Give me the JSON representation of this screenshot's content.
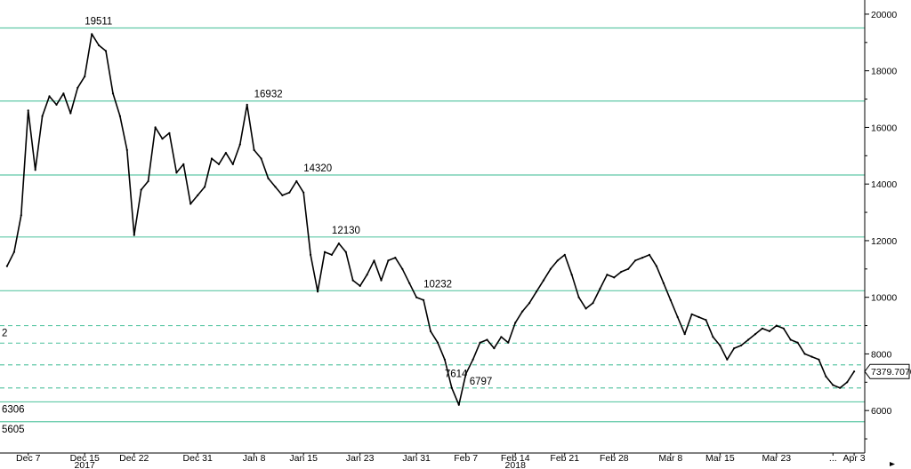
{
  "chart_data": {
    "type": "line",
    "title": "",
    "xlabel": "",
    "ylabel": "",
    "ylim": [
      4500,
      20500
    ],
    "grid": false,
    "y_ticks": [
      6000,
      8000,
      10000,
      12000,
      14000,
      16000,
      18000,
      20000
    ],
    "x_ticks": [
      {
        "label": "Dec 7",
        "date": "2017-12-07"
      },
      {
        "label": "Dec 15",
        "date": "2017-12-15"
      },
      {
        "label": "Dec 22",
        "date": "2017-12-22"
      },
      {
        "label": "Dec 31",
        "date": "2017-12-31"
      },
      {
        "label": "Jan 8",
        "date": "2018-01-08"
      },
      {
        "label": "Jan 15",
        "date": "2018-01-15"
      },
      {
        "label": "Jan 23",
        "date": "2018-01-23"
      },
      {
        "label": "Jan 31",
        "date": "2018-01-31"
      },
      {
        "label": "Feb 7",
        "date": "2018-02-07"
      },
      {
        "label": "Feb 14",
        "date": "2018-02-14"
      },
      {
        "label": "Feb 21",
        "date": "2018-02-21"
      },
      {
        "label": "Feb 28",
        "date": "2018-02-28"
      },
      {
        "label": "Mar 8",
        "date": "2018-03-08"
      },
      {
        "label": "Mar 15",
        "date": "2018-03-15"
      },
      {
        "label": "Mar 23",
        "date": "2018-03-23"
      },
      {
        "label": "...",
        "date": "2018-03-31"
      },
      {
        "label": "Apr 3",
        "date": "2018-04-03"
      }
    ],
    "year_labels": [
      {
        "label": "2017",
        "date": "2017-12-15"
      },
      {
        "label": "2018",
        "date": "2018-02-14"
      }
    ],
    "levels": [
      {
        "value": 19511,
        "label": "19511",
        "style": "solid"
      },
      {
        "value": 16932,
        "label": "16932",
        "style": "solid"
      },
      {
        "value": 14320,
        "label": "14320",
        "style": "solid"
      },
      {
        "value": 12130,
        "label": "12130",
        "style": "solid"
      },
      {
        "value": 10232,
        "label": "10232",
        "style": "solid"
      },
      {
        "value": 9000,
        "label": "2",
        "style": "dashed"
      },
      {
        "value": 8380,
        "label": "",
        "style": "dashed"
      },
      {
        "value": 7614,
        "label": "7614",
        "style": "dashed"
      },
      {
        "value": 6797,
        "label": "6797",
        "style": "dashed"
      },
      {
        "value": 6306,
        "label": "6306",
        "style": "solid"
      },
      {
        "value": 5605,
        "label": "5605",
        "style": "solid"
      }
    ],
    "last_value": "7379.7070",
    "series": [
      {
        "points": [
          [
            "2017-12-04",
            11100
          ],
          [
            "2017-12-05",
            11600
          ],
          [
            "2017-12-06",
            12900
          ],
          [
            "2017-12-07",
            16600
          ],
          [
            "2017-12-08",
            14500
          ],
          [
            "2017-12-09",
            16400
          ],
          [
            "2017-12-10",
            17100
          ],
          [
            "2017-12-11",
            16800
          ],
          [
            "2017-12-12",
            17200
          ],
          [
            "2017-12-13",
            16500
          ],
          [
            "2017-12-14",
            17400
          ],
          [
            "2017-12-15",
            17800
          ],
          [
            "2017-12-16",
            19300
          ],
          [
            "2017-12-17",
            18900
          ],
          [
            "2017-12-18",
            18700
          ],
          [
            "2017-12-19",
            17200
          ],
          [
            "2017-12-20",
            16400
          ],
          [
            "2017-12-21",
            15200
          ],
          [
            "2017-12-22",
            12200
          ],
          [
            "2017-12-23",
            13800
          ],
          [
            "2017-12-24",
            14100
          ],
          [
            "2017-12-25",
            16000
          ],
          [
            "2017-12-26",
            15600
          ],
          [
            "2017-12-27",
            15800
          ],
          [
            "2017-12-28",
            14400
          ],
          [
            "2017-12-29",
            14700
          ],
          [
            "2017-12-30",
            13300
          ],
          [
            "2017-12-31",
            13600
          ],
          [
            "2018-01-01",
            13900
          ],
          [
            "2018-01-02",
            14900
          ],
          [
            "2018-01-03",
            14700
          ],
          [
            "2018-01-04",
            15100
          ],
          [
            "2018-01-05",
            14700
          ],
          [
            "2018-01-06",
            15400
          ],
          [
            "2018-01-07",
            16800
          ],
          [
            "2018-01-08",
            15200
          ],
          [
            "2018-01-09",
            14900
          ],
          [
            "2018-01-10",
            14200
          ],
          [
            "2018-01-11",
            13900
          ],
          [
            "2018-01-12",
            13600
          ],
          [
            "2018-01-13",
            13700
          ],
          [
            "2018-01-14",
            14100
          ],
          [
            "2018-01-15",
            13700
          ],
          [
            "2018-01-16",
            11500
          ],
          [
            "2018-01-17",
            10200
          ],
          [
            "2018-01-18",
            11600
          ],
          [
            "2018-01-19",
            11500
          ],
          [
            "2018-01-20",
            11900
          ],
          [
            "2018-01-21",
            11600
          ],
          [
            "2018-01-22",
            10600
          ],
          [
            "2018-01-23",
            10400
          ],
          [
            "2018-01-24",
            10800
          ],
          [
            "2018-01-25",
            11300
          ],
          [
            "2018-01-26",
            10600
          ],
          [
            "2018-01-27",
            11300
          ],
          [
            "2018-01-28",
            11400
          ],
          [
            "2018-01-29",
            11000
          ],
          [
            "2018-01-30",
            10500
          ],
          [
            "2018-01-31",
            10000
          ],
          [
            "2018-02-01",
            9900
          ],
          [
            "2018-02-02",
            8800
          ],
          [
            "2018-02-03",
            8400
          ],
          [
            "2018-02-04",
            7800
          ],
          [
            "2018-02-05",
            6800
          ],
          [
            "2018-02-06",
            6200
          ],
          [
            "2018-02-07",
            7300
          ],
          [
            "2018-02-08",
            7800
          ],
          [
            "2018-02-09",
            8400
          ],
          [
            "2018-02-10",
            8500
          ],
          [
            "2018-02-11",
            8200
          ],
          [
            "2018-02-12",
            8600
          ],
          [
            "2018-02-13",
            8400
          ],
          [
            "2018-02-14",
            9100
          ],
          [
            "2018-02-15",
            9500
          ],
          [
            "2018-02-16",
            9800
          ],
          [
            "2018-02-17",
            10200
          ],
          [
            "2018-02-18",
            10600
          ],
          [
            "2018-02-19",
            11000
          ],
          [
            "2018-02-20",
            11300
          ],
          [
            "2018-02-21",
            11500
          ],
          [
            "2018-02-22",
            10800
          ],
          [
            "2018-02-23",
            10000
          ],
          [
            "2018-02-24",
            9600
          ],
          [
            "2018-02-25",
            9800
          ],
          [
            "2018-02-26",
            10300
          ],
          [
            "2018-02-27",
            10800
          ],
          [
            "2018-02-28",
            10700
          ],
          [
            "2018-03-01",
            10900
          ],
          [
            "2018-03-02",
            11000
          ],
          [
            "2018-03-03",
            11300
          ],
          [
            "2018-03-04",
            11400
          ],
          [
            "2018-03-05",
            11500
          ],
          [
            "2018-03-06",
            11100
          ],
          [
            "2018-03-07",
            10500
          ],
          [
            "2018-03-08",
            9900
          ],
          [
            "2018-03-09",
            9300
          ],
          [
            "2018-03-10",
            8700
          ],
          [
            "2018-03-11",
            9400
          ],
          [
            "2018-03-12",
            9300
          ],
          [
            "2018-03-13",
            9200
          ],
          [
            "2018-03-14",
            8600
          ],
          [
            "2018-03-15",
            8300
          ],
          [
            "2018-03-16",
            7800
          ],
          [
            "2018-03-17",
            8200
          ],
          [
            "2018-03-18",
            8300
          ],
          [
            "2018-03-19",
            8500
          ],
          [
            "2018-03-20",
            8700
          ],
          [
            "2018-03-21",
            8900
          ],
          [
            "2018-03-22",
            8800
          ],
          [
            "2018-03-23",
            9000
          ],
          [
            "2018-03-24",
            8900
          ],
          [
            "2018-03-25",
            8500
          ],
          [
            "2018-03-26",
            8400
          ],
          [
            "2018-03-27",
            8000
          ],
          [
            "2018-03-28",
            7900
          ],
          [
            "2018-03-29",
            7800
          ],
          [
            "2018-03-30",
            7200
          ],
          [
            "2018-03-31",
            6900
          ],
          [
            "2018-04-01",
            6800
          ],
          [
            "2018-04-02",
            7000
          ],
          [
            "2018-04-03",
            7380
          ]
        ]
      }
    ]
  }
}
